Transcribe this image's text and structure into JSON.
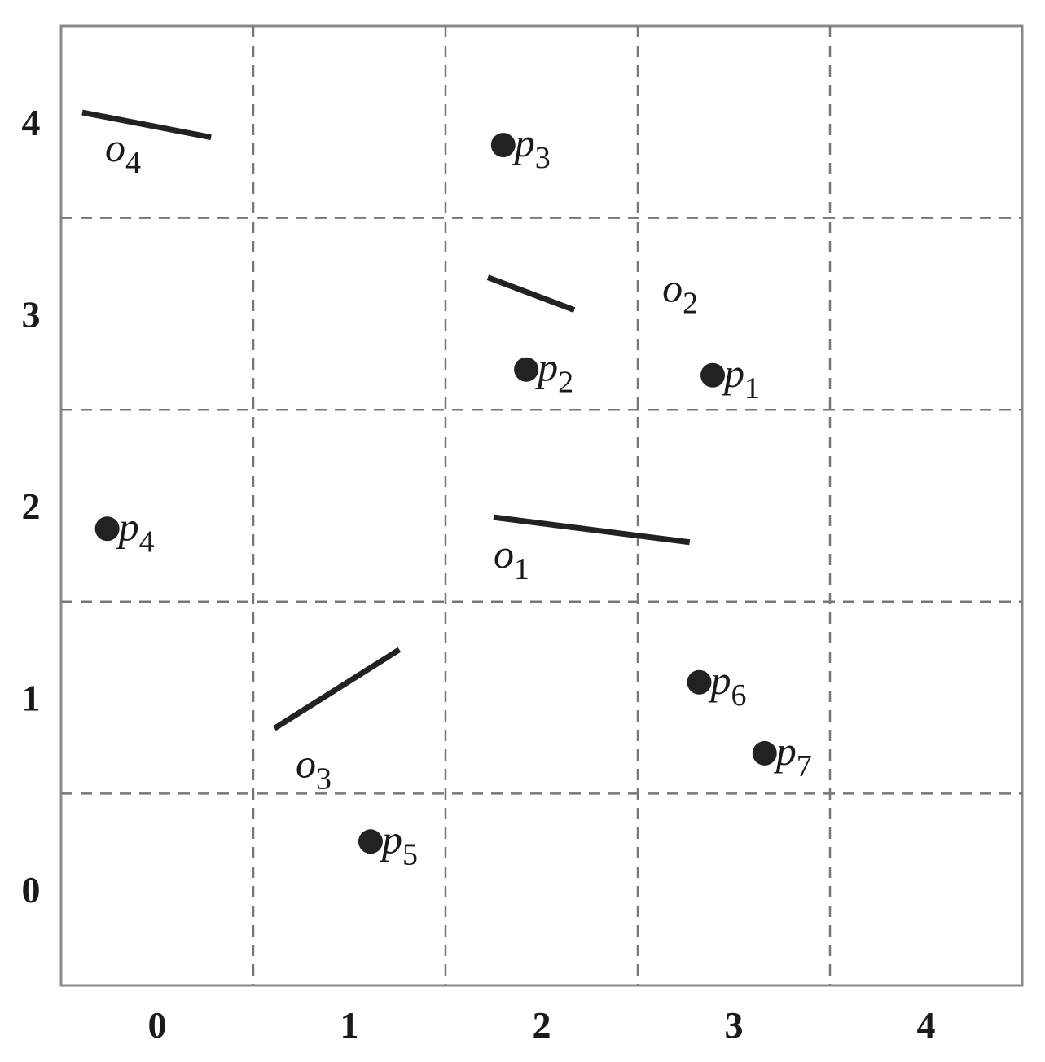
{
  "chart_data": {
    "type": "scatter",
    "xlim": [
      -0.5,
      4.5
    ],
    "ylim": [
      -0.5,
      4.5
    ],
    "xticks": [
      0,
      1,
      2,
      3,
      4
    ],
    "yticks": [
      0,
      1,
      2,
      3,
      4
    ],
    "grid": true,
    "color": "#222222",
    "points": [
      {
        "label": "p1",
        "x": 2.89,
        "y": 2.68
      },
      {
        "label": "p2",
        "x": 1.92,
        "y": 2.71
      },
      {
        "label": "p3",
        "x": 1.8,
        "y": 3.88
      },
      {
        "label": "p4",
        "x": -0.26,
        "y": 1.88
      },
      {
        "label": "p5",
        "x": 1.11,
        "y": 0.25
      },
      {
        "label": "p6",
        "x": 2.82,
        "y": 1.08
      },
      {
        "label": "p7",
        "x": 3.16,
        "y": 0.71
      }
    ],
    "segments": [
      {
        "label": "o1",
        "x": [
          1.75,
          2.77
        ],
        "y": [
          1.94,
          1.81
        ]
      },
      {
        "label": "o2",
        "x": [
          1.72,
          2.17
        ],
        "y": [
          3.19,
          3.02
        ]
      },
      {
        "label": "o3",
        "x": [
          0.61,
          1.26
        ],
        "y": [
          0.84,
          1.25
        ]
      },
      {
        "label": "o4",
        "x": [
          -0.39,
          0.28
        ],
        "y": [
          4.05,
          3.92
        ]
      }
    ]
  }
}
